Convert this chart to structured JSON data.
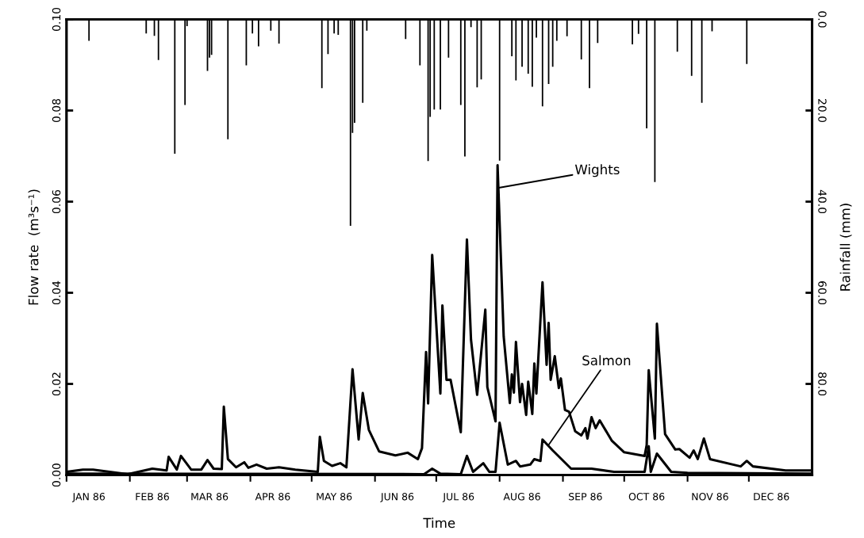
{
  "chart_data": {
    "type": "line",
    "xlabel": "Time",
    "ylabel": "Flow rate  (m³s⁻¹)",
    "y2label": "Rainfall (mm)",
    "xlim": [
      "1986-01-01",
      "1987-01-01"
    ],
    "xticks": [
      {
        "value": "1986-01-01",
        "label": null
      },
      {
        "value": "1986-01-12",
        "label": "JAN 86"
      },
      {
        "value": "1986-02-01",
        "label": null
      },
      {
        "value": "1986-02-12",
        "label": "FEB 86"
      },
      {
        "value": "1986-03-01",
        "label": null
      },
      {
        "value": "1986-03-12",
        "label": "MAR 86"
      },
      {
        "value": "1986-04-01",
        "label": null
      },
      {
        "value": "1986-04-12",
        "label": "APR 86"
      },
      {
        "value": "1986-05-01",
        "label": null
      },
      {
        "value": "1986-05-12",
        "label": "MAY 86"
      },
      {
        "value": "1986-06-01",
        "label": null
      },
      {
        "value": "1986-06-12",
        "label": "JUN 86"
      },
      {
        "value": "1986-07-01",
        "label": null
      },
      {
        "value": "1986-07-12",
        "label": "JUL 86"
      },
      {
        "value": "1986-08-01",
        "label": null
      },
      {
        "value": "1986-08-12",
        "label": "AUG 86"
      },
      {
        "value": "1986-09-01",
        "label": null
      },
      {
        "value": "1986-09-12",
        "label": "SEP 86"
      },
      {
        "value": "1986-10-01",
        "label": null
      },
      {
        "value": "1986-10-12",
        "label": "OCT 86"
      },
      {
        "value": "1986-11-01",
        "label": null
      },
      {
        "value": "1986-11-12",
        "label": "NOV 86"
      },
      {
        "value": "1986-12-01",
        "label": null
      },
      {
        "value": "1986-12-12",
        "label": "DEC 86"
      }
    ],
    "ylim": [
      0,
      0.1
    ],
    "yticks": [
      {
        "value": 0,
        "label": "0.00"
      },
      {
        "value": 0.02,
        "label": "0.02"
      },
      {
        "value": 0.04,
        "label": "0.04"
      },
      {
        "value": 0.06,
        "label": "0.06"
      },
      {
        "value": 0.08,
        "label": "0.08"
      },
      {
        "value": 0.1,
        "label": "0.10"
      }
    ],
    "y2lim": [
      100,
      0
    ],
    "y2ticks": [
      {
        "value": 0,
        "label": "0.0"
      },
      {
        "value": 20,
        "label": "20.0"
      },
      {
        "value": 40,
        "label": "40.0"
      },
      {
        "value": 60,
        "label": "60.0"
      },
      {
        "value": 80,
        "label": "80.0"
      }
    ],
    "grid": false,
    "marker": "none",
    "line_style": "solid",
    "annotations": [
      {
        "text": "Wights",
        "x": "1986-07-31",
        "y": 0.063
      },
      {
        "text": "Salmon",
        "x": "1986-08-25",
        "y": 0.0066
      }
    ],
    "series": [
      {
        "type": "bar",
        "axis": "y2",
        "color": "#000000",
        "x": [
          "1986-01-12",
          "1986-02-09",
          "1986-02-13",
          "1986-02-15",
          "1986-02-23",
          "1986-02-28",
          "1986-03-01",
          "1986-03-11",
          "1986-03-12",
          "1986-03-13",
          "1986-03-21",
          "1986-03-30",
          "1986-04-02",
          "1986-04-05",
          "1986-04-11",
          "1986-04-15",
          "1986-05-06",
          "1986-05-09",
          "1986-05-12",
          "1986-05-14",
          "1986-05-20",
          "1986-05-21",
          "1986-05-22",
          "1986-05-26",
          "1986-05-28",
          "1986-06-16",
          "1986-06-23",
          "1986-06-27",
          "1986-06-28",
          "1986-06-30",
          "1986-07-03",
          "1986-07-07",
          "1986-07-13",
          "1986-07-15",
          "1986-07-18",
          "1986-07-21",
          "1986-07-23",
          "1986-08-01",
          "1986-08-07",
          "1986-08-09",
          "1986-08-12",
          "1986-08-15",
          "1986-08-17",
          "1986-08-19",
          "1986-08-22",
          "1986-08-25",
          "1986-08-27",
          "1986-08-29",
          "1986-09-03",
          "1986-09-10",
          "1986-09-14",
          "1986-09-18",
          "1986-10-05",
          "1986-10-08",
          "1986-10-12",
          "1986-10-16",
          "1986-10-27",
          "1986-11-03",
          "1986-11-08",
          "1986-11-13",
          "1986-11-30"
        ],
        "values": [
          4.7,
          3.1,
          3.6,
          8.9,
          29.5,
          18.8,
          1.5,
          11.3,
          8.4,
          7.8,
          26.3,
          10.1,
          3.1,
          5.9,
          2.5,
          5.3,
          15.1,
          7.6,
          3.1,
          3.4,
          45.3,
          24.9,
          22.7,
          18.3,
          2.5,
          4.3,
          10.1,
          31.1,
          21.4,
          19.8,
          19.8,
          8.4,
          18.8,
          30.1,
          1.7,
          14.9,
          13.2,
          31.0,
          8.1,
          13.4,
          10.4,
          11.9,
          14.8,
          4.0,
          19.1,
          14.2,
          10.4,
          4.7,
          3.7,
          8.8,
          15.1,
          5.2,
          5.5,
          3.2,
          23.9,
          35.7,
          7.1,
          12.4,
          18.3,
          2.6,
          9.8
        ]
      },
      {
        "color": "#000000",
        "x": [
          "1986-01-01",
          "1986-01-09",
          "1986-01-14",
          "1986-01-31",
          "1986-02-12",
          "1986-02-19",
          "1986-02-20",
          "1986-02-24",
          "1986-02-26",
          "1986-03-03",
          "1986-03-08",
          "1986-03-11",
          "1986-03-14",
          "1986-03-18",
          "1986-03-19",
          "1986-03-21",
          "1986-03-25",
          "1986-03-29",
          "1986-03-31",
          "1986-04-04",
          "1986-04-09",
          "1986-04-15",
          "1986-04-23",
          "1986-05-04",
          "1986-05-05",
          "1986-05-07",
          "1986-05-11",
          "1986-05-15",
          "1986-05-18",
          "1986-05-21",
          "1986-05-24",
          "1986-05-26",
          "1986-05-29",
          "1986-06-03",
          "1986-06-11",
          "1986-06-17",
          "1986-06-22",
          "1986-06-24",
          "1986-06-26",
          "1986-06-27",
          "1986-06-29",
          "1986-07-03",
          "1986-07-04",
          "1986-07-06",
          "1986-07-08",
          "1986-07-13",
          "1986-07-14",
          "1986-07-16",
          "1986-07-18",
          "1986-07-21",
          "1986-07-25",
          "1986-07-26",
          "1986-07-30",
          "1986-07-31",
          "1986-08-03",
          "1986-08-06",
          "1986-08-07",
          "1986-08-08",
          "1986-08-09",
          "1986-08-11",
          "1986-08-12",
          "1986-08-14",
          "1986-08-15",
          "1986-08-17",
          "1986-08-18",
          "1986-08-19",
          "1986-08-22",
          "1986-08-24",
          "1986-08-25",
          "1986-08-26",
          "1986-08-28",
          "1986-08-30",
          "1986-08-31",
          "1986-09-02",
          "1986-09-04",
          "1986-09-07",
          "1986-09-10",
          "1986-09-12",
          "1986-09-13",
          "1986-09-15",
          "1986-09-17",
          "1986-09-19",
          "1986-09-25",
          "1986-10-01",
          "1986-10-11",
          "1986-10-12",
          "1986-10-13",
          "1986-10-16",
          "1986-10-17",
          "1986-10-21",
          "1986-10-26",
          "1986-10-28",
          "1986-11-02",
          "1986-11-04",
          "1986-11-06",
          "1986-11-09",
          "1986-11-12",
          "1986-11-27",
          "1986-11-30",
          "1986-12-03",
          "1986-12-19",
          "1986-12-31"
        ],
        "values": [
          0.0007,
          0.0012,
          0.0012,
          0.0002,
          0.0014,
          0.001,
          0.004,
          0.0012,
          0.0042,
          0.0012,
          0.0012,
          0.0033,
          0.0014,
          0.0013,
          0.015,
          0.0035,
          0.0017,
          0.0028,
          0.0016,
          0.0023,
          0.0014,
          0.0017,
          0.0012,
          0.0007,
          0.0084,
          0.0031,
          0.002,
          0.0026,
          0.0017,
          0.0232,
          0.0078,
          0.018,
          0.0099,
          0.0052,
          0.0043,
          0.0049,
          0.0035,
          0.0059,
          0.027,
          0.0157,
          0.0483,
          0.0179,
          0.0372,
          0.0209,
          0.0209,
          0.0094,
          0.0237,
          0.0517,
          0.0297,
          0.0176,
          0.0363,
          0.0193,
          0.0118,
          0.068,
          0.0304,
          0.0158,
          0.0221,
          0.0181,
          0.0292,
          0.016,
          0.02,
          0.0132,
          0.0205,
          0.0134,
          0.0245,
          0.0179,
          0.0423,
          0.0242,
          0.0334,
          0.0209,
          0.0261,
          0.0191,
          0.0212,
          0.0143,
          0.0139,
          0.0096,
          0.0087,
          0.0103,
          0.008,
          0.0127,
          0.0103,
          0.012,
          0.0075,
          0.005,
          0.0042,
          0.0066,
          0.023,
          0.008,
          0.0332,
          0.009,
          0.0056,
          0.0057,
          0.0038,
          0.0054,
          0.0035,
          0.008,
          0.0035,
          0.0019,
          0.0031,
          0.0019,
          0.001,
          0.001
        ]
      },
      {
        "color": "#000000",
        "x": [
          "1986-01-01",
          "1986-06-25",
          "1986-06-29",
          "1986-07-03",
          "1986-07-13",
          "1986-07-16",
          "1986-07-19",
          "1986-07-24",
          "1986-07-27",
          "1986-07-30",
          "1986-08-01",
          "1986-08-05",
          "1986-08-09",
          "1986-08-11",
          "1986-08-16",
          "1986-08-18",
          "1986-08-21",
          "1986-08-22",
          "1986-08-27",
          "1986-09-05",
          "1986-09-15",
          "1986-09-26",
          "1986-10-11",
          "1986-10-13",
          "1986-10-14",
          "1986-10-17",
          "1986-10-24",
          "1986-11-01",
          "1986-12-31"
        ],
        "values": [
          0.0003,
          0.0002,
          0.0014,
          0.0003,
          0.0002,
          0.0042,
          0.0007,
          0.0026,
          0.0007,
          0.0007,
          0.0115,
          0.0023,
          0.0031,
          0.0019,
          0.0023,
          0.0035,
          0.0031,
          0.0078,
          0.0054,
          0.0014,
          0.0014,
          0.0007,
          0.0007,
          0.0063,
          0.0007,
          0.0047,
          0.0007,
          0.0005,
          0.0003
        ]
      }
    ]
  }
}
